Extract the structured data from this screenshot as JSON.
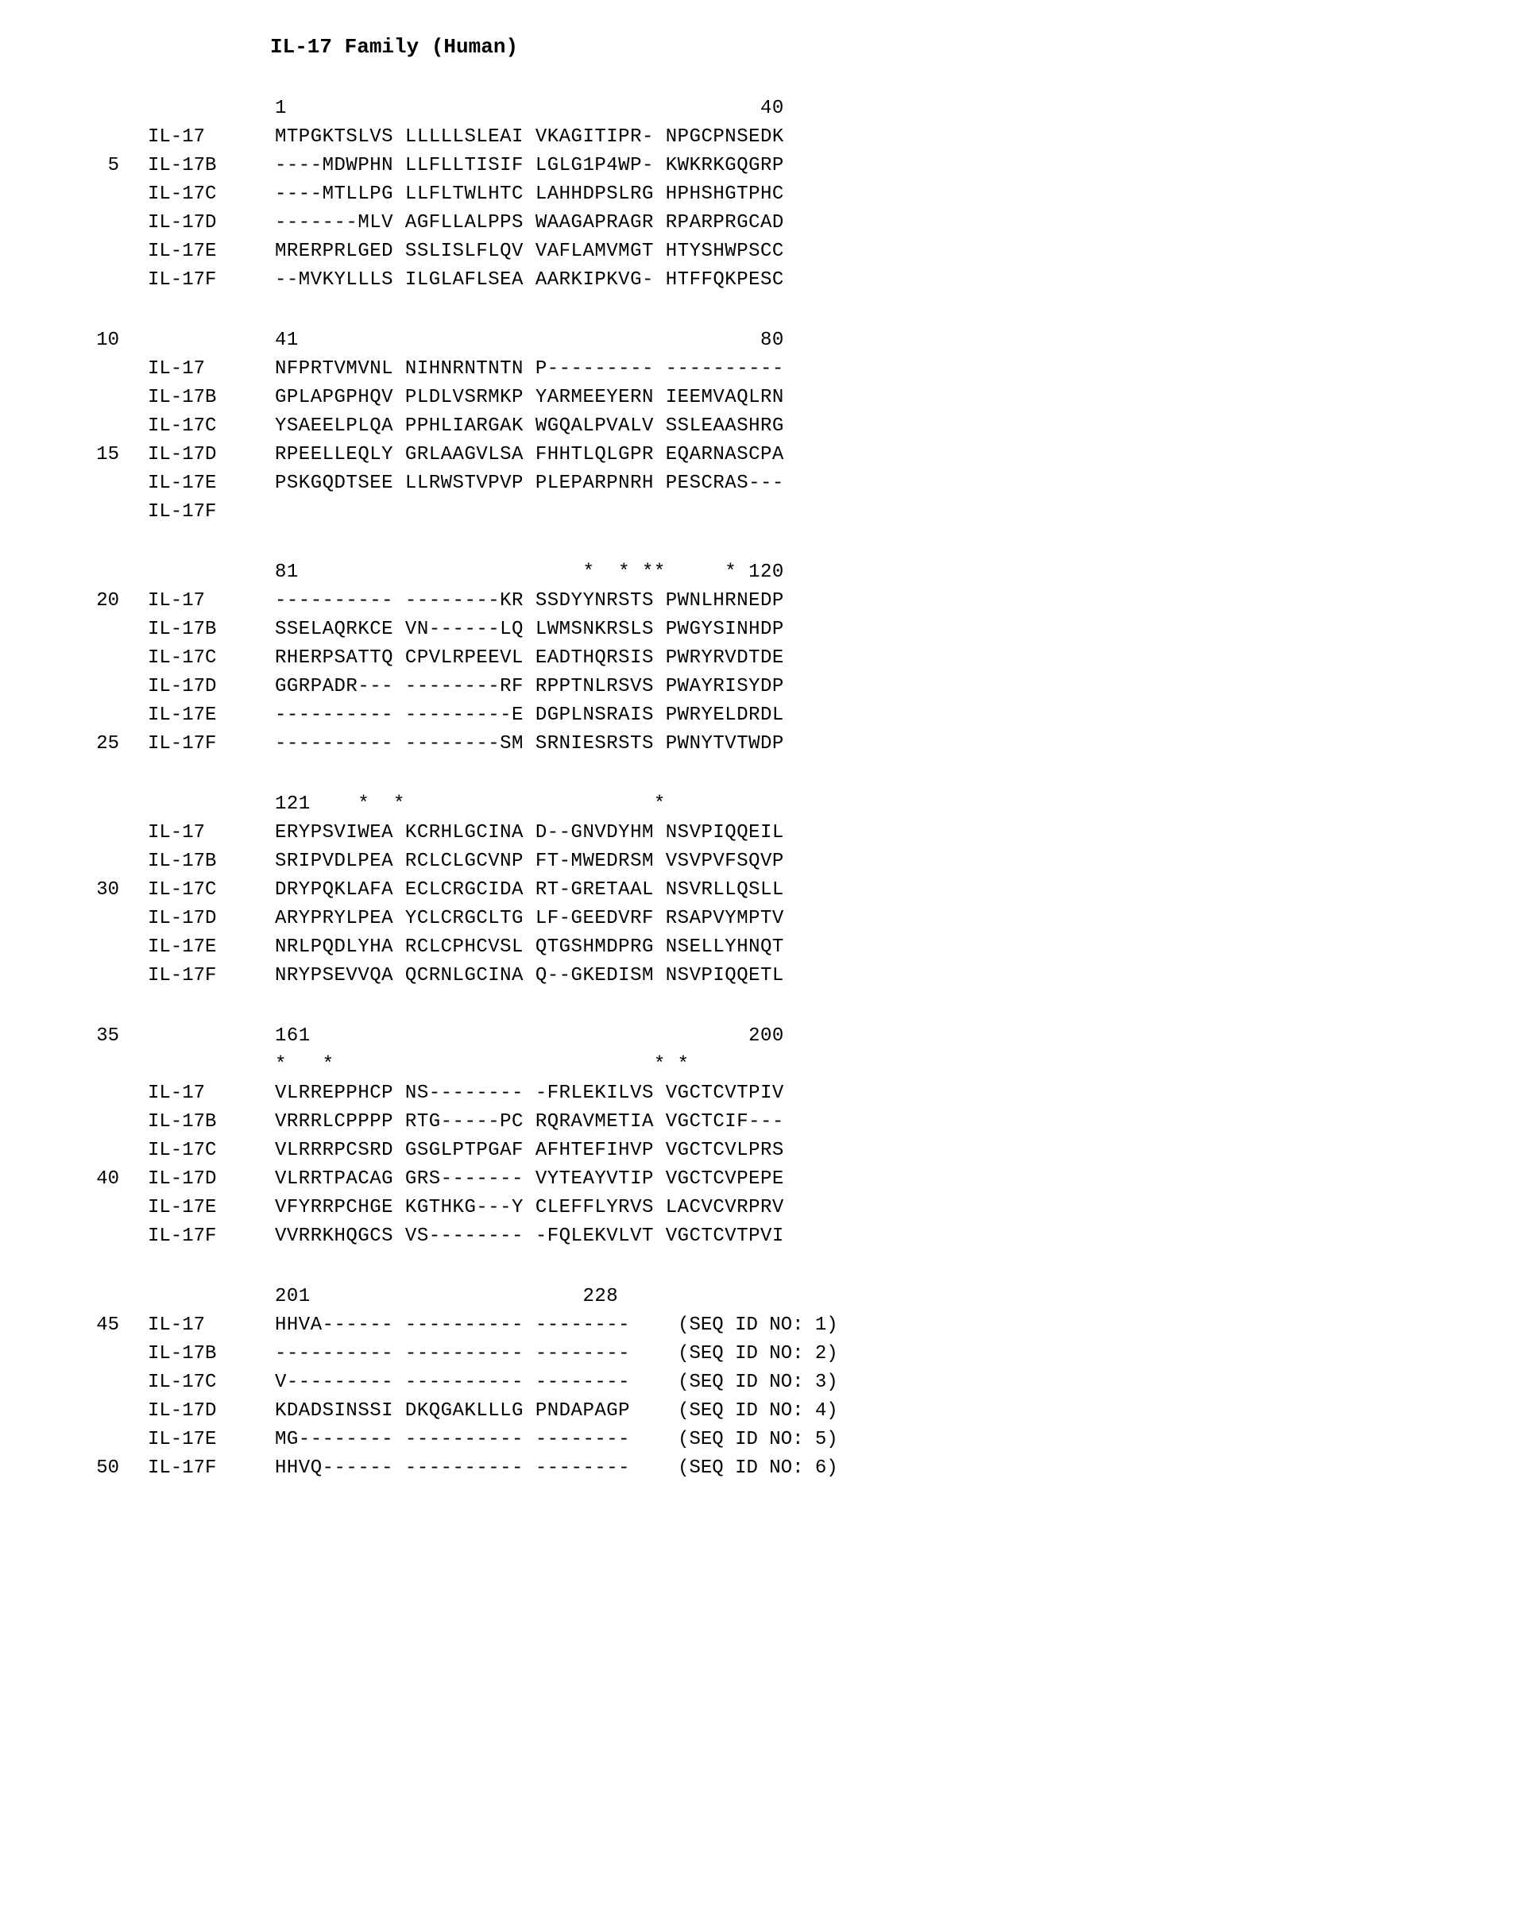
{
  "title": "IL-17 Family (Human)",
  "line_numbers": [
    "5",
    "10",
    "15",
    "20",
    "25",
    "30",
    "35",
    "40",
    "45",
    "50"
  ],
  "blocks": [
    {
      "pos_start": "1",
      "pos_end": "40",
      "stars": "",
      "rows": [
        {
          "ln": "",
          "label": "IL-17",
          "seq": "MTPGKTSLVS LLLLLSLEAI VKAGITIPR- NPGCPNSEDK"
        },
        {
          "ln": "5",
          "label": "IL-17B",
          "seq": "----MDWPHN LLFLLTISIF LGLG1P4WP- KWKRKGQGRP"
        },
        {
          "ln": "",
          "label": "IL-17C",
          "seq": "----MTLLPG LLFLTWLHTC LAHHDPSLRG HPHSHGTPHC"
        },
        {
          "ln": "",
          "label": "IL-17D",
          "seq": "-------MLV AGFLLALPPS WAAGAPRAGR RPARPRGCAD"
        },
        {
          "ln": "",
          "label": "IL-17E",
          "seq": "MRERPRLGED SSLISLFLQV VAFLAMVMGT HTYSHWPSCC"
        },
        {
          "ln": "",
          "label": "IL-17F",
          "seq": "--MVKYLLLS ILGLAFLSEA AARKIPKVG- HTFFQKPESC"
        }
      ]
    },
    {
      "pos_start": "41",
      "pos_end": "80",
      "pre_ln": "10",
      "stars": "",
      "rows": [
        {
          "ln": "",
          "label": "IL-17",
          "seq": "NFPRTVMVNL NIHNRNTNTN P--------- ----------"
        },
        {
          "ln": "",
          "label": "IL-17B",
          "seq": "GPLAPGPHQV PLDLVSRMKP YARMEEYERN IEEMVAQLRN"
        },
        {
          "ln": "",
          "label": "IL-17C",
          "seq": "YSAEELPLQA PPHLIARGAK WGQALPVALV SSLEAASHRG"
        },
        {
          "ln": "15",
          "label": "IL-17D",
          "seq": "RPEELLEQLY GRLAAGVLSA FHHTLQLGPR EQARNASCPA"
        },
        {
          "ln": "",
          "label": "IL-17E",
          "seq": "PSKGQDTSEE LLRWSTVPVP PLEPARPNRH PESCRAS---"
        },
        {
          "ln": "",
          "label": "IL-17F",
          "seq": ""
        }
      ]
    },
    {
      "pos_start": "81",
      "pos_end": "120",
      "stars": "                          *  * **     *",
      "rows": [
        {
          "ln": "20",
          "label": "IL-17",
          "seq": "---------- --------KR SSDYYNRSTS PWNLHRNEDP"
        },
        {
          "ln": "",
          "label": "IL-17B",
          "seq": "SSELAQRKCE VN------LQ LWMSNKRSLS PWGYSINHDP"
        },
        {
          "ln": "",
          "label": "IL-17C",
          "seq": "RHERPSATTQ CPVLRPEEVL EADTHQRSIS PWRYRVDTDE"
        },
        {
          "ln": "",
          "label": "IL-17D",
          "seq": "GGRPADR--- --------RF RPPTNLRSVS PWAYRISYDP"
        },
        {
          "ln": "",
          "label": "IL-17E",
          "seq": "---------- ---------E DGPLNSRAIS PWRYELDRDL"
        },
        {
          "ln": "25",
          "label": "IL-17F",
          "seq": "---------- --------SM SRNIESRSTS PWNYTVTWDP"
        }
      ]
    },
    {
      "pos_start": "121",
      "pos_end": "",
      "stars": "       *  *                     *",
      "rows": [
        {
          "ln": "",
          "label": "IL-17",
          "seq": "ERYPSVIWEA KCRHLGCINA D--GNVDYHM NSVPIQQEIL"
        },
        {
          "ln": "",
          "label": "IL-17B",
          "seq": "SRIPVDLPEA RCLCLGCVNP FT-MWEDRSM VSVPVFSQVP"
        },
        {
          "ln": "30",
          "label": "IL-17C",
          "seq": "DRYPQKLAFA ECLCRGCIDA RT-GRETAAL NSVRLLQSLL"
        },
        {
          "ln": "",
          "label": "IL-17D",
          "seq": "ARYPRYLPEA YCLCRGCLTG LF-GEEDVRF RSAPVYMPTV"
        },
        {
          "ln": "",
          "label": "IL-17E",
          "seq": "NRLPQDLYHA RCLCPHCVSL QTGSHMDPRG NSELLYHNQT"
        },
        {
          "ln": "",
          "label": "IL-17F",
          "seq": "NRYPSEVVQA QCRNLGCINA Q--GKEDISM NSVPIQQETL"
        }
      ]
    },
    {
      "pos_start": "161",
      "pos_end": "200",
      "pre_ln": "35",
      "stars": "*   *                           * *",
      "rows": [
        {
          "ln": "",
          "label": "IL-17",
          "seq": "VLRREPPHCP NS-------- -FRLEKILVS VGCTCVTPIV"
        },
        {
          "ln": "",
          "label": "IL-17B",
          "seq": "VRRRLCPPPP RTG-----PC RQRAVMETIA VGCTCIF---"
        },
        {
          "ln": "",
          "label": "IL-17C",
          "seq": "VLRRRPCSRD GSGLPTPGAF AFHTEFIHVP VGCTCVLPRS"
        },
        {
          "ln": "40",
          "label": "IL-17D",
          "seq": "VLRRTPACAG GRS------- VYTEAYVTIP VGCTCVPEPE"
        },
        {
          "ln": "",
          "label": "IL-17E",
          "seq": "VFYRRPCHGE KGTHKG---Y CLEFFLYRVS LACVCVRPRV"
        },
        {
          "ln": "",
          "label": "IL-17F",
          "seq": "VVRRKHQGCS VS-------- -FQLEKVLVT VGCTCVTPVI"
        }
      ]
    },
    {
      "pos_start": "201",
      "pos_end": "228",
      "end_col_offset": "                       ",
      "stars": "",
      "rows": [
        {
          "ln": "45",
          "label": "IL-17",
          "seq": "HHVA------ ---------- --------",
          "seqid": "(SEQ ID NO: 1)"
        },
        {
          "ln": "",
          "label": "IL-17B",
          "seq": "---------- ---------- --------",
          "seqid": "(SEQ ID NO: 2)"
        },
        {
          "ln": "",
          "label": "IL-17C",
          "seq": "V--------- ---------- --------",
          "seqid": "(SEQ ID NO: 3)"
        },
        {
          "ln": "",
          "label": "IL-17D",
          "seq": "KDADSINSSI DKQGAKLLLG PNDAPAGP",
          "seqid": "(SEQ ID NO: 4)"
        },
        {
          "ln": "",
          "label": "IL-17E",
          "seq": "MG-------- ---------- --------",
          "seqid": "(SEQ ID NO: 5)"
        },
        {
          "ln": "50",
          "label": "IL-17F",
          "seq": "HHVQ------ ---------- --------",
          "seqid": "(SEQ ID NO: 6)"
        }
      ]
    }
  ]
}
